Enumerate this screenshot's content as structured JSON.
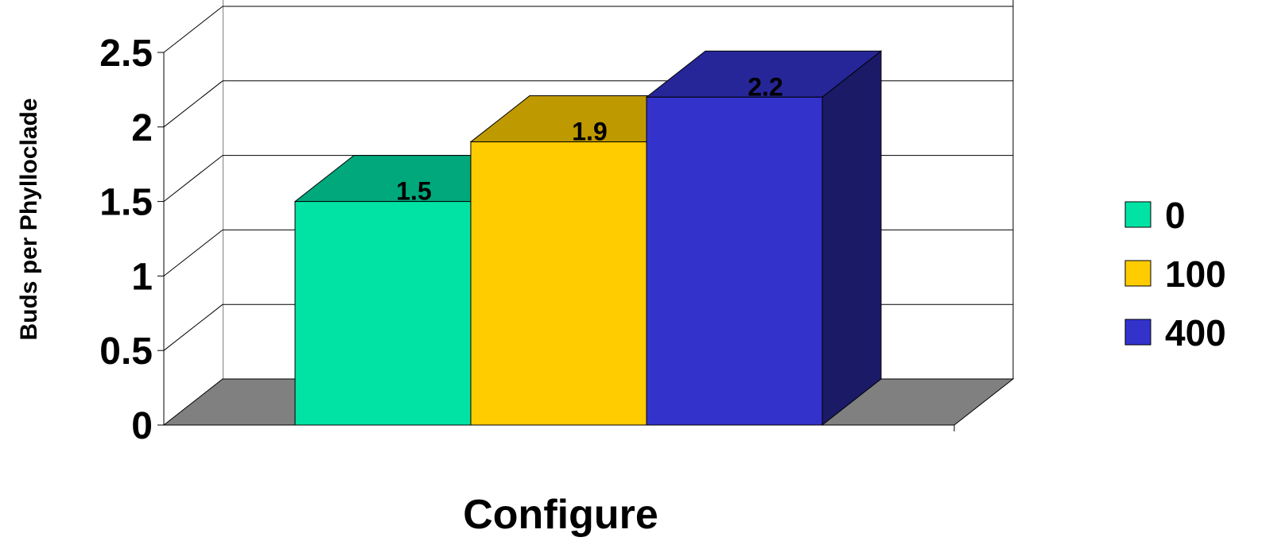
{
  "chart_data": {
    "type": "bar",
    "style": "3d",
    "title": "",
    "xlabel": "Configure",
    "ylabel": "Buds per Phylloclade",
    "ylim": [
      0,
      2.5
    ],
    "yticks": [
      "0",
      "0.5",
      "1",
      "1.5",
      "2",
      "2.5"
    ],
    "grid": true,
    "legend_position": "right",
    "series": [
      {
        "name": "0",
        "value": 1.5,
        "label": "1.5",
        "color": "#00E3A4",
        "top_color": "#00A87C"
      },
      {
        "name": "100",
        "value": 1.9,
        "label": "1.9",
        "color": "#FFCC00",
        "top_color": "#BF9900"
      },
      {
        "name": "400",
        "value": 2.2,
        "label": "2.2",
        "color": "#3333CC",
        "top_color": "#262699",
        "side_color": "#1A1A66"
      }
    ],
    "floor_color": "#808080"
  }
}
